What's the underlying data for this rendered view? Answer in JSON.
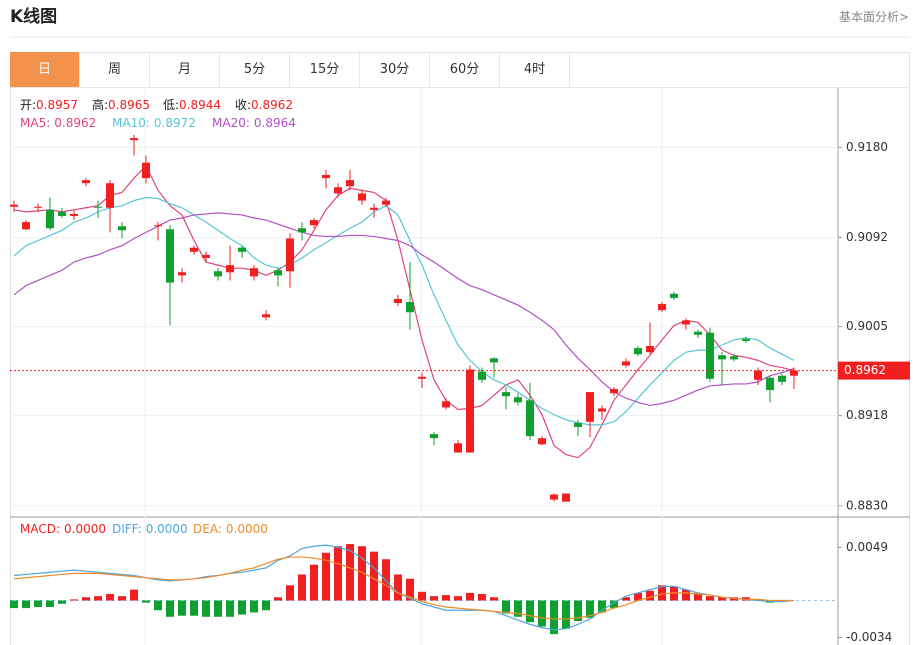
{
  "header": {
    "title": "K线图",
    "link": "基本面分析>"
  },
  "tabs": [
    "日",
    "周",
    "月",
    "5分",
    "15分",
    "30分",
    "60分",
    "4时"
  ],
  "active_tab": 0,
  "chart_data": [
    {
      "type": "candlestick",
      "info": [
        {
          "label": "开:",
          "value": "0.8957"
        },
        {
          "label": "高:",
          "value": "0.8965"
        },
        {
          "label": "低:",
          "value": "0.8944"
        },
        {
          "label": "收:",
          "value": "0.8962"
        }
      ],
      "open": [
        0.9122,
        0.91,
        0.9121,
        0.9119,
        0.9117,
        0.9113,
        0.9145,
        0.9122,
        0.9121,
        0.9103,
        0.9187,
        0.915,
        0.9103,
        0.91,
        0.9055,
        0.9078,
        0.9072,
        0.9059,
        0.9058,
        0.9082,
        0.9054,
        0.9014,
        0.906,
        0.9059,
        0.9101,
        0.9104,
        0.915,
        0.9135,
        0.9142,
        0.9128,
        0.9119,
        0.9124,
        0.9028,
        0.9029,
        0.8954,
        0.89,
        0.8926,
        0.8882,
        0.8882,
        0.8961,
        0.8974,
        0.8941,
        0.8936,
        0.8933,
        0.889,
        0.8836,
        0.8834,
        0.8911,
        0.8912,
        0.8922,
        0.894,
        0.8967,
        0.8984,
        0.898,
        0.9021,
        0.9037,
        0.9007,
        0.9,
        0.8999,
        0.8977,
        0.8976,
        0.8993,
        0.8953,
        0.8955,
        0.8957,
        0.8957
      ],
      "high": [
        0.9128,
        0.9109,
        0.9125,
        0.9131,
        0.9121,
        0.9119,
        0.915,
        0.9128,
        0.9148,
        0.9107,
        0.9192,
        0.9172,
        0.9107,
        0.9104,
        0.9062,
        0.9084,
        0.9078,
        0.9062,
        0.9084,
        0.9084,
        0.9065,
        0.9021,
        0.9062,
        0.9096,
        0.9107,
        0.9111,
        0.9158,
        0.9145,
        0.9158,
        0.9138,
        0.9125,
        0.9131,
        0.9036,
        0.9068,
        0.896,
        0.8902,
        0.8935,
        0.8894,
        0.8967,
        0.8965,
        0.8975,
        0.8946,
        0.894,
        0.895,
        0.8898,
        0.8842,
        0.8842,
        0.8914,
        0.8941,
        0.8928,
        0.8946,
        0.8974,
        0.8986,
        0.9009,
        0.9029,
        0.9039,
        0.9013,
        0.9002,
        0.9004,
        0.898,
        0.8978,
        0.8995,
        0.8965,
        0.8957,
        0.8959,
        0.8965
      ],
      "low": [
        0.9117,
        0.9099,
        0.9117,
        0.9099,
        0.9111,
        0.9109,
        0.9142,
        0.9111,
        0.9097,
        0.9091,
        0.9172,
        0.9145,
        0.9089,
        0.9006,
        0.9048,
        0.9075,
        0.9068,
        0.905,
        0.905,
        0.9072,
        0.905,
        0.9011,
        0.9044,
        0.9043,
        0.9089,
        0.9101,
        0.914,
        0.9131,
        0.9138,
        0.9124,
        0.9111,
        0.9122,
        0.9025,
        0.9002,
        0.8945,
        0.8889,
        0.8924,
        0.8882,
        0.8882,
        0.895,
        0.8955,
        0.8924,
        0.8928,
        0.8894,
        0.8889,
        0.8834,
        0.8834,
        0.8898,
        0.8897,
        0.8914,
        0.8937,
        0.8965,
        0.8976,
        0.8978,
        0.9019,
        0.9031,
        0.9002,
        0.8994,
        0.8951,
        0.8948,
        0.8971,
        0.8989,
        0.8948,
        0.8931,
        0.8948,
        0.8944
      ],
      "close": [
        0.9124,
        0.9107,
        0.9122,
        0.9101,
        0.9113,
        0.9115,
        0.9148,
        0.9121,
        0.9145,
        0.9099,
        0.9189,
        0.9165,
        0.9104,
        0.9048,
        0.9058,
        0.9082,
        0.9075,
        0.9054,
        0.9065,
        0.9078,
        0.9062,
        0.9017,
        0.9055,
        0.9091,
        0.9097,
        0.9109,
        0.9153,
        0.9141,
        0.9148,
        0.9135,
        0.9121,
        0.9128,
        0.9032,
        0.9019,
        0.8956,
        0.8896,
        0.8932,
        0.8891,
        0.8963,
        0.8953,
        0.897,
        0.8937,
        0.8931,
        0.8898,
        0.8896,
        0.8841,
        0.8842,
        0.8907,
        0.8941,
        0.8925,
        0.8944,
        0.8971,
        0.8978,
        0.8986,
        0.9027,
        0.9033,
        0.9011,
        0.8997,
        0.8954,
        0.8973,
        0.8973,
        0.8991,
        0.8962,
        0.8943,
        0.8951,
        0.8962
      ],
      "up_color": "#f02020",
      "down_color": "#10a030",
      "info_label_color": "#222222",
      "series": [
        {
          "name": "MA5:",
          "value_label": "0.8962",
          "color": "#e0457b",
          "values": [
            0.9119,
            0.9117,
            0.9118,
            0.9119,
            0.9117,
            0.9119,
            0.9121,
            0.9123,
            0.9133,
            0.9136,
            0.915,
            0.9162,
            0.9138,
            0.9123,
            0.9114,
            0.9089,
            0.9068,
            0.9065,
            0.9062,
            0.9062,
            0.906,
            0.9055,
            0.906,
            0.9068,
            0.908,
            0.9099,
            0.9119,
            0.9133,
            0.914,
            0.9138,
            0.9136,
            0.9128,
            0.9089,
            0.9041,
            0.8992,
            0.8953,
            0.8933,
            0.8924,
            0.8925,
            0.8928,
            0.8938,
            0.8948,
            0.8953,
            0.8938,
            0.8919,
            0.8889,
            0.888,
            0.8877,
            0.8887,
            0.8909,
            0.8933,
            0.8948,
            0.8963,
            0.8977,
            0.8992,
            0.9006,
            0.9011,
            0.9009,
            0.8997,
            0.8982,
            0.8977,
            0.8975,
            0.8972,
            0.8967,
            0.8965,
            0.8962
          ]
        },
        {
          "name": "MA10:",
          "value_label": "0.8972",
          "color": "#57c6d6",
          "values": [
            0.9074,
            0.9084,
            0.9089,
            0.9094,
            0.9099,
            0.9107,
            0.9111,
            0.9117,
            0.9121,
            0.9123,
            0.9128,
            0.9131,
            0.913,
            0.9125,
            0.9121,
            0.9114,
            0.9107,
            0.9099,
            0.9091,
            0.9084,
            0.9072,
            0.9065,
            0.9062,
            0.9065,
            0.9072,
            0.908,
            0.9087,
            0.9094,
            0.9101,
            0.9107,
            0.9117,
            0.9123,
            0.9114,
            0.9089,
            0.9065,
            0.9036,
            0.9011,
            0.8987,
            0.8972,
            0.8961,
            0.8953,
            0.8948,
            0.8941,
            0.8933,
            0.8925,
            0.8919,
            0.8914,
            0.8911,
            0.8909,
            0.8909,
            0.8912,
            0.8922,
            0.8935,
            0.8948,
            0.896,
            0.8972,
            0.898,
            0.8982,
            0.8982,
            0.8987,
            0.8992,
            0.8994,
            0.8992,
            0.8984,
            0.8978,
            0.8972
          ]
        },
        {
          "name": "MA20:",
          "value_label": "0.8964",
          "color": "#b151c4",
          "values": [
            0.9036,
            0.9045,
            0.905,
            0.9055,
            0.906,
            0.9068,
            0.9072,
            0.9075,
            0.908,
            0.9084,
            0.9091,
            0.9097,
            0.9103,
            0.9109,
            0.9111,
            0.9114,
            0.9115,
            0.9116,
            0.9115,
            0.9114,
            0.9111,
            0.9109,
            0.9105,
            0.9101,
            0.9097,
            0.9094,
            0.9093,
            0.9093,
            0.9094,
            0.9094,
            0.9093,
            0.9091,
            0.9089,
            0.9084,
            0.9075,
            0.9068,
            0.906,
            0.9052,
            0.9045,
            0.9041,
            0.9036,
            0.9031,
            0.9026,
            0.9019,
            0.9011,
            0.9002,
            0.8987,
            0.8974,
            0.8963,
            0.8951,
            0.8941,
            0.8935,
            0.8931,
            0.8928,
            0.893,
            0.8933,
            0.8938,
            0.8943,
            0.8947,
            0.8948,
            0.8949,
            0.8949,
            0.8951,
            0.8957,
            0.896,
            0.8964
          ]
        }
      ],
      "ylim": [
        0.8821,
        0.9236
      ],
      "yticks": [
        {
          "value": 0.918,
          "label": "0.9180"
        },
        0.9092,
        0.9005,
        0.8918,
        {
          "value": 0.883,
          "label": "0.8830"
        }
      ],
      "last_price": 0.8962,
      "grid": true
    },
    {
      "type": "macd",
      "name": "MACD:",
      "value_label": "0.0000",
      "color": "#f02020",
      "values": [
        -0.0007,
        -0.0007,
        -0.0006,
        -0.0006,
        -0.0003,
        0.0001,
        0.0003,
        0.0004,
        0.0006,
        0.0004,
        0.001,
        -0.0002,
        -0.0009,
        -0.0015,
        -0.0014,
        -0.0014,
        -0.0015,
        -0.0015,
        -0.0015,
        -0.0013,
        -0.0011,
        -0.0009,
        0.0003,
        0.0014,
        0.0024,
        0.0033,
        0.0044,
        0.005,
        0.0052,
        0.005,
        0.0045,
        0.0038,
        0.0024,
        0.002,
        0.0008,
        0.0004,
        0.0005,
        0.0004,
        0.0007,
        0.0006,
        0.0003,
        -0.0012,
        -0.0015,
        -0.002,
        -0.0024,
        -0.0031,
        -0.0026,
        -0.0019,
        -0.0016,
        -0.0011,
        -0.0007,
        0.0003,
        0.0007,
        0.0009,
        0.0014,
        0.0013,
        0.001,
        0.0007,
        0.0004,
        0.0003,
        0.0003,
        0.0003,
        0.0001,
        -0.0002,
        -0.0001,
        0.0
      ],
      "up_color": "#f02020",
      "down_color": "#10a030",
      "series": [
        {
          "name": "DIFF:",
          "value_label": "0.0000",
          "color": "#4fa6e0",
          "values": [
            0.0023,
            0.0024,
            0.0025,
            0.0026,
            0.0027,
            0.0028,
            0.0027,
            0.0026,
            0.0025,
            0.0024,
            0.0023,
            0.0021,
            0.0019,
            0.0018,
            0.0019,
            0.002,
            0.0022,
            0.0023,
            0.0025,
            0.0026,
            0.0028,
            0.003,
            0.0037,
            0.0041,
            0.0048,
            0.005,
            0.0051,
            0.0049,
            0.0046,
            0.0039,
            0.003,
            0.0018,
            0.0007,
            0.0002,
            -0.0003,
            -0.0006,
            -0.0009,
            -0.0009,
            -0.0009,
            -0.0009,
            -0.001,
            -0.0014,
            -0.0018,
            -0.0022,
            -0.0025,
            -0.0027,
            -0.0026,
            -0.0022,
            -0.0017,
            -0.0009,
            -0.0002,
            0.0004,
            0.0007,
            0.001,
            0.0013,
            0.0013,
            0.001,
            0.0007,
            0.0005,
            0.0003,
            0.0002,
            0.0001,
            0.0,
            -0.0001,
            -0.0001,
            0.0
          ]
        },
        {
          "name": "DEA:",
          "value_label": "0.0000",
          "color": "#ef8a2a",
          "values": [
            0.002,
            0.0021,
            0.0022,
            0.0023,
            0.0024,
            0.0025,
            0.0025,
            0.0025,
            0.0024,
            0.0023,
            0.0022,
            0.0021,
            0.002,
            0.0019,
            0.0019,
            0.002,
            0.0021,
            0.0023,
            0.0025,
            0.0028,
            0.003,
            0.0034,
            0.0038,
            0.004,
            0.004,
            0.0039,
            0.0037,
            0.0034,
            0.003,
            0.0026,
            0.002,
            0.0014,
            0.0007,
            0.0003,
            -0.0001,
            -0.0004,
            -0.0006,
            -0.0007,
            -0.0008,
            -0.0009,
            -0.001,
            -0.0011,
            -0.0012,
            -0.0014,
            -0.0016,
            -0.0017,
            -0.0017,
            -0.0016,
            -0.0014,
            -0.0011,
            -0.0007,
            -0.0004,
            0.0,
            0.0003,
            0.0006,
            0.0007,
            0.0007,
            0.0006,
            0.0005,
            0.0003,
            0.0002,
            0.0001,
            0.0001,
            0.0,
            0.0,
            0.0
          ]
        }
      ],
      "ylim": [
        -0.0041,
        0.0076
      ],
      "yticks": [
        -0.0034,
        0.0049
      ]
    }
  ]
}
